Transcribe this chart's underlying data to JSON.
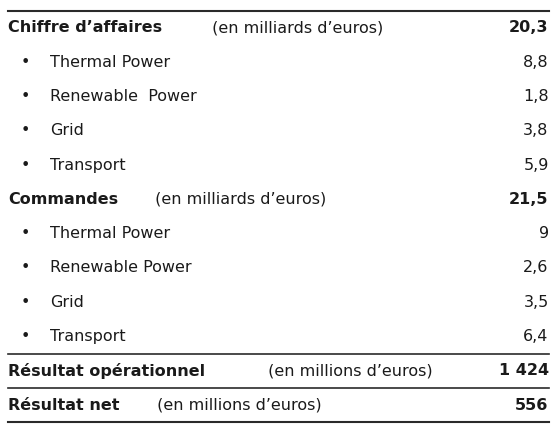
{
  "rows": [
    {
      "label_bold": "Chiffre d’affaires",
      "label_normal": " (en milliards d’euros)",
      "value": "20,3",
      "indent": false,
      "bold_value": true,
      "separator_above": false
    },
    {
      "label_bold": "",
      "label_normal": "Thermal Power",
      "value": "8,8",
      "indent": true,
      "bold_value": false,
      "separator_above": false
    },
    {
      "label_bold": "",
      "label_normal": "Renewable  Power",
      "value": "1,8",
      "indent": true,
      "bold_value": false,
      "separator_above": false
    },
    {
      "label_bold": "",
      "label_normal": "Grid",
      "value": "3,8",
      "indent": true,
      "bold_value": false,
      "separator_above": false
    },
    {
      "label_bold": "",
      "label_normal": "Transport",
      "value": "5,9",
      "indent": true,
      "bold_value": false,
      "separator_above": false
    },
    {
      "label_bold": "Commandes",
      "label_normal": " (en milliards d’euros)",
      "value": "21,5",
      "indent": false,
      "bold_value": true,
      "separator_above": false
    },
    {
      "label_bold": "",
      "label_normal": "Thermal Power",
      "value": "9",
      "indent": true,
      "bold_value": false,
      "separator_above": false
    },
    {
      "label_bold": "",
      "label_normal": "Renewable Power",
      "value": "2,6",
      "indent": true,
      "bold_value": false,
      "separator_above": false
    },
    {
      "label_bold": "",
      "label_normal": "Grid",
      "value": "3,5",
      "indent": true,
      "bold_value": false,
      "separator_above": false
    },
    {
      "label_bold": "",
      "label_normal": "Transport",
      "value": "6,4",
      "indent": true,
      "bold_value": false,
      "separator_above": false
    },
    {
      "label_bold": "Résultat opérationnel",
      "label_normal": " (en millions d’euros)",
      "value": "1 424",
      "indent": false,
      "bold_value": true,
      "separator_above": true
    },
    {
      "label_bold": "Résultat net",
      "label_normal": " (en millions d’euros)",
      "value": "556",
      "indent": false,
      "bold_value": true,
      "separator_above": true
    }
  ],
  "text_color": "#1a1a1a",
  "border_color": "#2a2a2a",
  "background": "#ffffff",
  "font_size": 11.5,
  "bullet_char": "•",
  "figwidth": 5.57,
  "figheight": 4.33,
  "dpi": 100
}
